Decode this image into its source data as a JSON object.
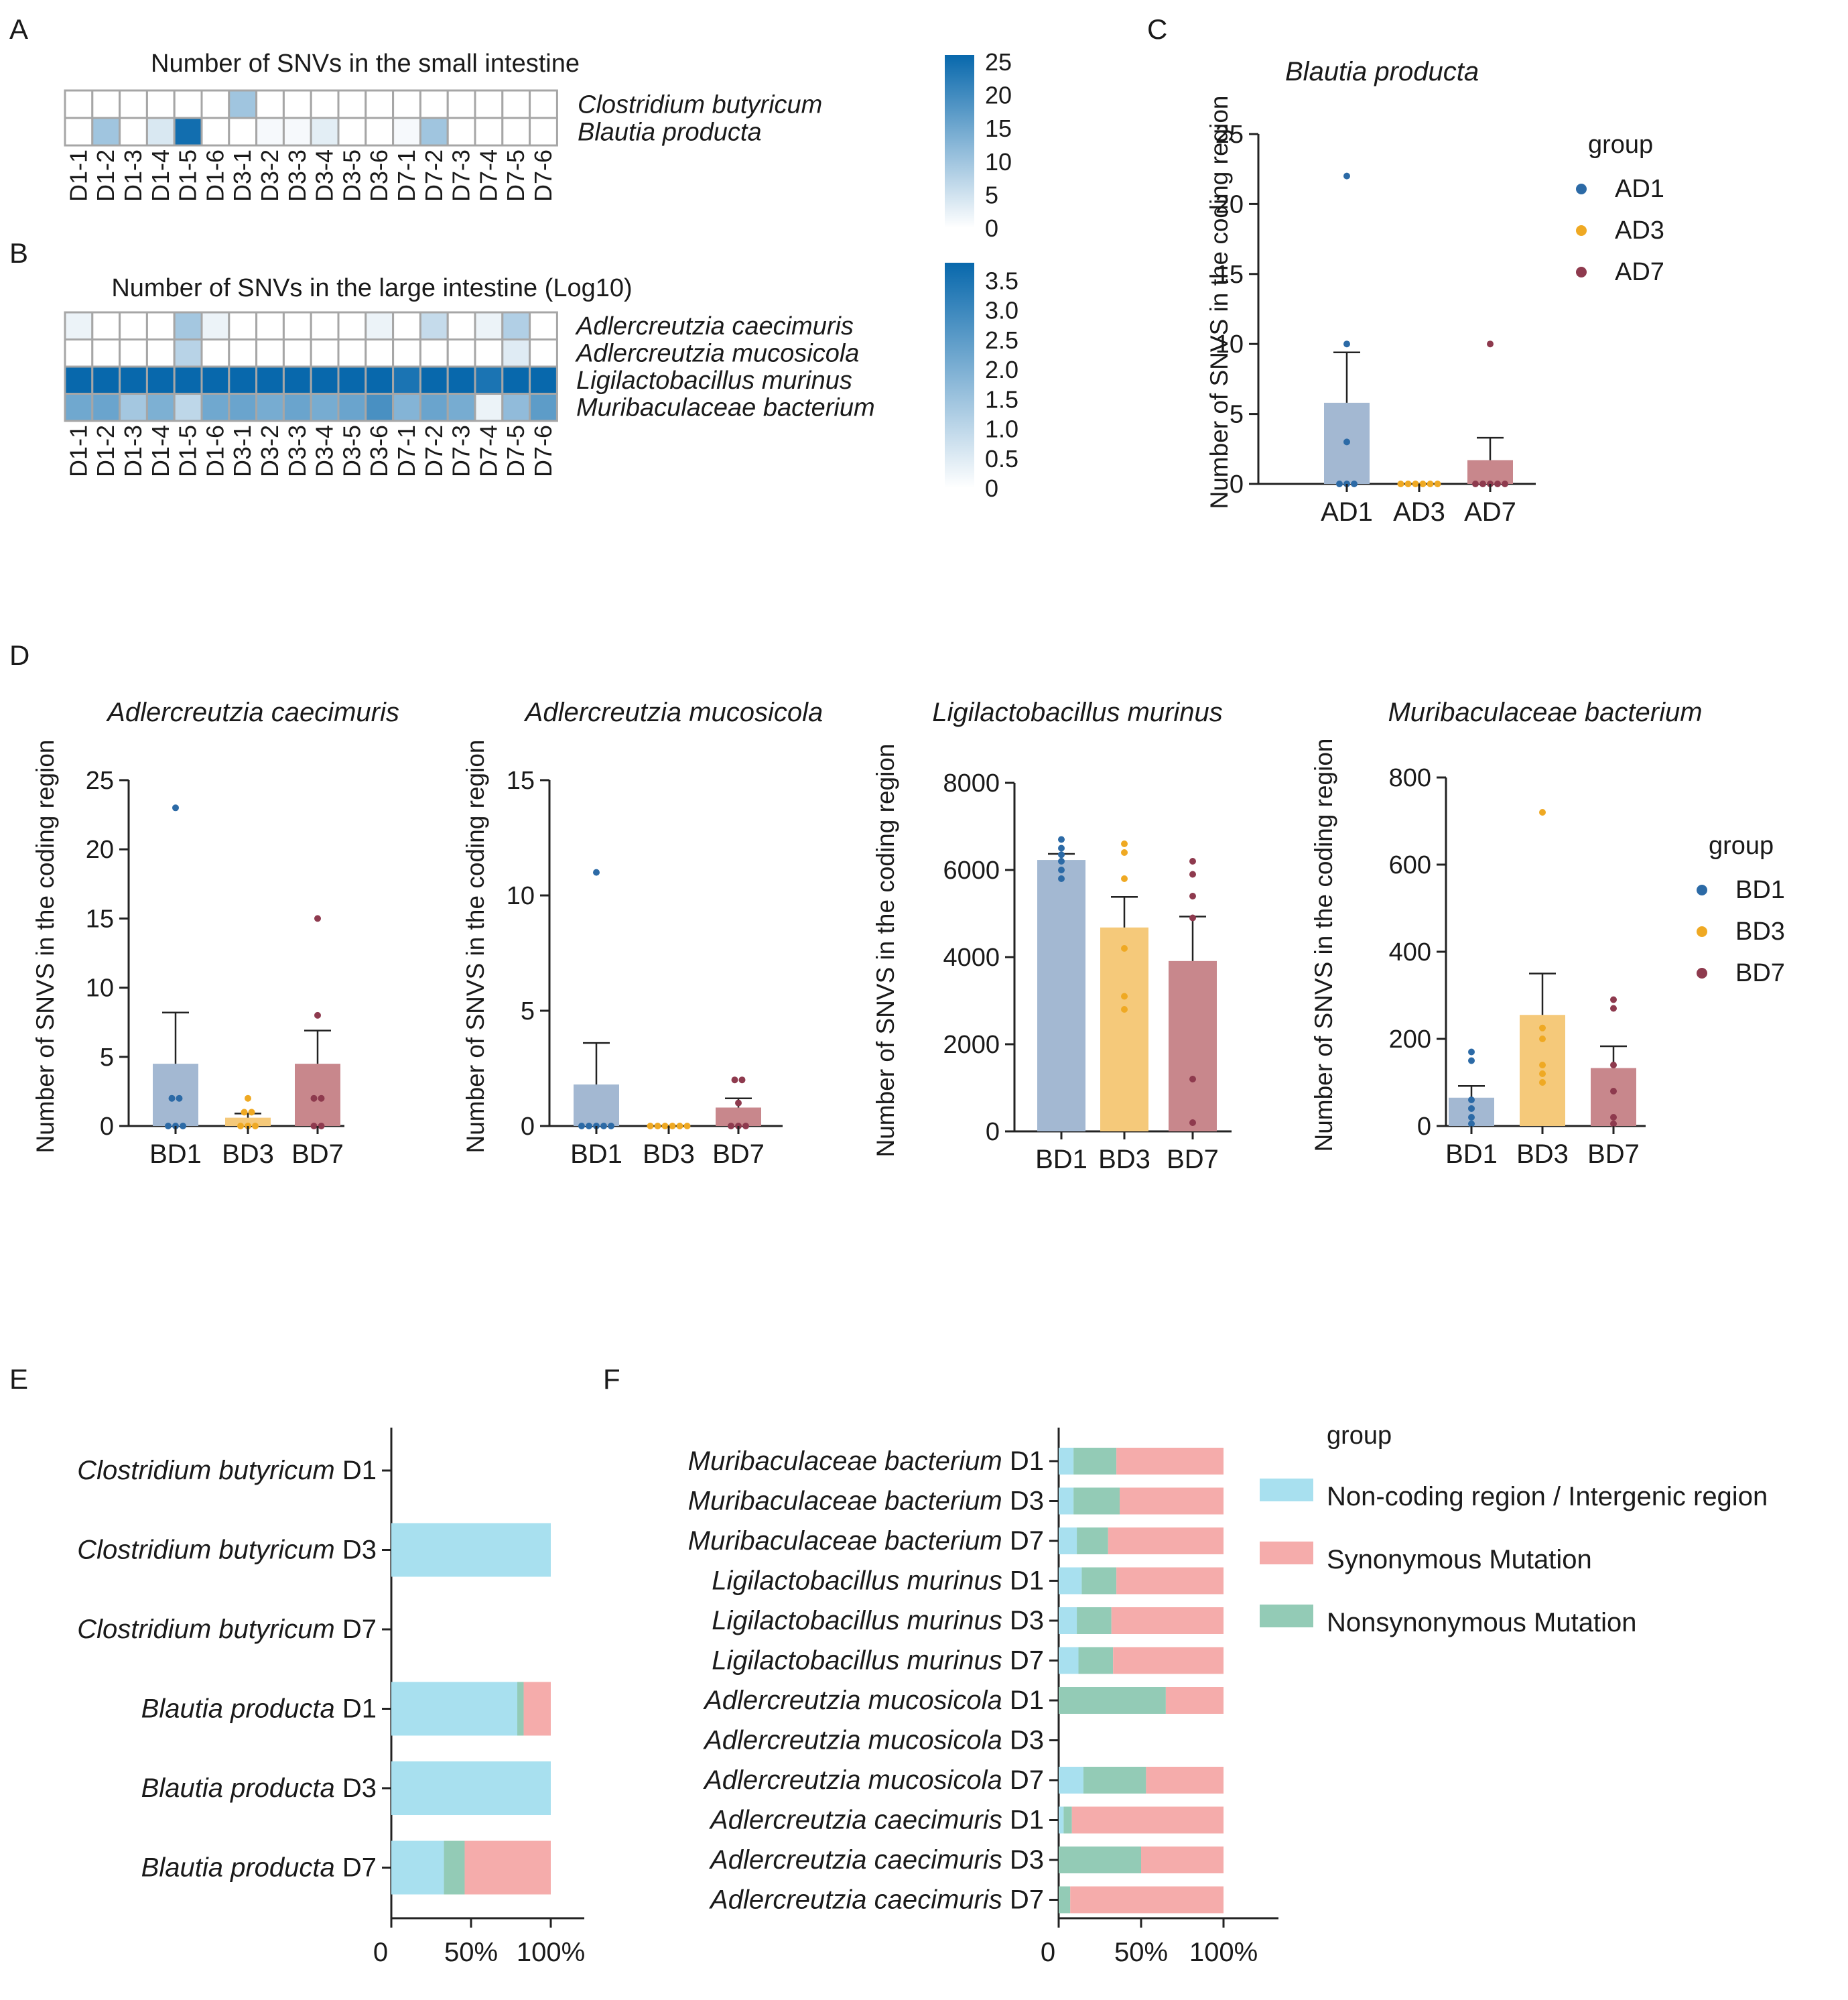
{
  "panel_letters": [
    "A",
    "B",
    "C",
    "D",
    "E",
    "F"
  ],
  "chart_data": [
    {
      "panel": "A",
      "type": "heatmap",
      "title": "Number of SNVs in the small intestine",
      "columns": [
        "D1-1",
        "D1-2",
        "D1-3",
        "D1-4",
        "D1-5",
        "D1-6",
        "D3-1",
        "D3-2",
        "D3-3",
        "D3-4",
        "D3-5",
        "D3-6",
        "D7-1",
        "D7-2",
        "D7-3",
        "D7-4",
        "D7-5",
        "D7-6"
      ],
      "rows": [
        "Clostridium butyricum",
        "Blautia producta"
      ],
      "values": [
        [
          0,
          0,
          0,
          0,
          0,
          0,
          10,
          0,
          0,
          0,
          0,
          0,
          0,
          0,
          0,
          0,
          0,
          0
        ],
        [
          0,
          10,
          0,
          4,
          25,
          0,
          0,
          1,
          1,
          3,
          0,
          0,
          1,
          10,
          0,
          0,
          0,
          0
        ]
      ],
      "color_scale": {
        "min": 0,
        "max": 26,
        "low_color": "#ffffff",
        "high_color": "#0868ac",
        "ticks": [
          "25",
          "20",
          "15",
          "10",
          "5",
          "0"
        ],
        "tick_values": [
          25,
          20,
          15,
          10,
          5,
          0
        ]
      }
    },
    {
      "panel": "B",
      "type": "heatmap",
      "title": "Number of SNVs in the large intestine (Log10)",
      "columns": [
        "D1-1",
        "D1-2",
        "D1-3",
        "D1-4",
        "D1-5",
        "D1-6",
        "D3-1",
        "D3-2",
        "D3-3",
        "D3-4",
        "D3-5",
        "D3-6",
        "D7-1",
        "D7-2",
        "D7-3",
        "D7-4",
        "D7-5",
        "D7-6"
      ],
      "rows": [
        "Adlercreutzia caecimuris",
        "Adlercreutzia mucosicola",
        "Ligilactobacillus murinus",
        "Muribaculaceae bacterium"
      ],
      "values": [
        [
          0.3,
          0,
          0,
          0,
          1.4,
          0.3,
          0,
          0,
          0,
          0,
          0,
          0.3,
          0,
          0.9,
          0,
          0.3,
          1.2,
          0
        ],
        [
          0,
          0,
          0,
          0,
          1.1,
          0,
          0,
          0,
          0,
          0,
          0,
          0,
          0,
          0,
          0,
          0,
          0.5,
          0
        ],
        [
          3.8,
          3.8,
          3.8,
          3.8,
          3.8,
          3.8,
          3.8,
          3.8,
          3.8,
          3.8,
          3.8,
          3.8,
          3.5,
          3.8,
          3.8,
          3.5,
          3.8,
          3.8
        ],
        [
          2.2,
          2.3,
          1.4,
          2.0,
          1.0,
          2.2,
          2.3,
          2.1,
          2.3,
          2.1,
          2.3,
          2.8,
          1.9,
          2.3,
          2.1,
          0.3,
          1.7,
          2.5
        ]
      ],
      "color_scale": {
        "min": 0,
        "max": 3.8,
        "low_color": "#ffffff",
        "high_color": "#0868ac",
        "ticks": [
          "3.5",
          "3.0",
          "2.5",
          "2.0",
          "1.5",
          "1.0",
          "0.5",
          "0"
        ],
        "tick_values": [
          3.5,
          3.0,
          2.5,
          2.0,
          1.5,
          1.0,
          0.5,
          0
        ]
      }
    },
    {
      "panel": "C",
      "type": "bar",
      "title": "Blautia producta",
      "ylabel": "Number of SNVS in the coding region",
      "categories": [
        "AD1",
        "AD3",
        "AD7"
      ],
      "means": [
        5.8,
        0,
        1.7
      ],
      "errors": [
        3.6,
        0,
        1.6
      ],
      "points": [
        [
          22,
          10,
          3,
          0,
          0,
          0
        ],
        [
          0,
          0,
          0,
          0,
          0,
          0
        ],
        [
          10,
          0,
          0,
          0,
          0,
          0
        ]
      ],
      "ylim": [
        0,
        25
      ],
      "yticks": [
        "0",
        "5",
        "10",
        "15",
        "20",
        "25"
      ],
      "ytick_values": [
        0,
        5,
        10,
        15,
        20,
        25
      ],
      "legend_title": "group",
      "legend": [
        "AD1",
        "AD3",
        "AD7"
      ]
    },
    {
      "panel": "D",
      "type": "bar",
      "title": "Adlercreutzia caecimuris",
      "ylabel": "Number of SNVS in the coding region",
      "categories": [
        "BD1",
        "BD3",
        "BD7"
      ],
      "means": [
        4.5,
        0.6,
        4.5
      ],
      "errors": [
        3.7,
        0.3,
        2.4
      ],
      "points": [
        [
          23,
          2,
          2,
          0,
          0,
          0
        ],
        [
          2,
          1,
          1,
          0,
          0,
          0
        ],
        [
          15,
          8,
          2,
          2,
          0,
          0
        ]
      ],
      "ylim": [
        0,
        25
      ],
      "yticks": [
        "0",
        "5",
        "10",
        "15",
        "20",
        "25"
      ],
      "ytick_values": [
        0,
        5,
        10,
        15,
        20,
        25
      ]
    },
    {
      "panel": "D",
      "type": "bar",
      "title": "Adlercreutzia mucosicola",
      "ylabel": "Number of SNVS in the coding region",
      "categories": [
        "BD1",
        "BD3",
        "BD7"
      ],
      "means": [
        1.8,
        0,
        0.8
      ],
      "errors": [
        1.8,
        0,
        0.4
      ],
      "points": [
        [
          11,
          0,
          0,
          0,
          0,
          0
        ],
        [
          0,
          0,
          0,
          0,
          0,
          0
        ],
        [
          2,
          2,
          1,
          0,
          0,
          0
        ]
      ],
      "ylim": [
        0,
        15
      ],
      "yticks": [
        "0",
        "5",
        "10",
        "15"
      ],
      "ytick_values": [
        0,
        5,
        10,
        15
      ]
    },
    {
      "panel": "D",
      "type": "bar",
      "title": "Ligilactobacillus murinus",
      "ylabel": "Number of SNVS in the coding region",
      "categories": [
        "BD1",
        "BD3",
        "BD7"
      ],
      "means": [
        6230,
        4680,
        3910
      ],
      "errors": [
        140,
        700,
        1020
      ],
      "points": [
        [
          6700,
          6500,
          6350,
          6200,
          6000,
          5800
        ],
        [
          6600,
          6400,
          5800,
          4200,
          3100,
          2800
        ],
        [
          6200,
          5900,
          5400,
          4900,
          1200,
          200
        ]
      ],
      "ylim": [
        0,
        8000
      ],
      "yticks": [
        "0",
        "2000",
        "4000",
        "6000",
        "8000"
      ],
      "ytick_values": [
        0,
        2000,
        4000,
        6000,
        8000
      ]
    },
    {
      "panel": "D",
      "type": "bar",
      "title": "Muribaculaceae bacterium",
      "ylabel": "Number of SNVS in the coding region",
      "categories": [
        "BD1",
        "BD3",
        "BD7"
      ],
      "means": [
        65,
        255,
        133
      ],
      "errors": [
        27,
        95,
        50
      ],
      "points": [
        [
          170,
          150,
          60,
          40,
          20,
          5
        ],
        [
          720,
          225,
          200,
          140,
          120,
          100
        ],
        [
          290,
          270,
          140,
          80,
          20,
          5
        ]
      ],
      "ylim": [
        0,
        800
      ],
      "yticks": [
        "0",
        "200",
        "400",
        "600",
        "800"
      ],
      "ytick_values": [
        0,
        200,
        400,
        600,
        800
      ],
      "legend_title": "group",
      "legend": [
        "BD1",
        "BD3",
        "BD7"
      ]
    },
    {
      "panel": "E",
      "type": "bar",
      "orientation": "horizontal-stacked",
      "categories": [
        {
          "species": "Clostridium butyricum",
          "day": "D1"
        },
        {
          "species": "Clostridium butyricum",
          "day": "D3"
        },
        {
          "species": "Clostridium butyricum",
          "day": "D7"
        },
        {
          "species": "Blautia producta",
          "day": "D1"
        },
        {
          "species": "Blautia producta",
          "day": "D3"
        },
        {
          "species": "Blautia producta",
          "day": "D7"
        }
      ],
      "series": [
        {
          "name": "Non-coding region / Intergenic region",
          "values": [
            0,
            100,
            0,
            79,
            100,
            33
          ]
        },
        {
          "name": "Nonsynonymous Mutation",
          "values": [
            0,
            0,
            0,
            4,
            0,
            13
          ]
        },
        {
          "name": "Synonymous Mutation",
          "values": [
            0,
            0,
            0,
            17,
            0,
            54
          ]
        }
      ],
      "xticks": [
        "0",
        "50%",
        "100%"
      ],
      "xtick_values": [
        0,
        50,
        100
      ]
    },
    {
      "panel": "F",
      "type": "bar",
      "orientation": "horizontal-stacked",
      "categories": [
        {
          "species": "Muribaculaceae bacterium",
          "day": "D1"
        },
        {
          "species": "Muribaculaceae bacterium",
          "day": "D3"
        },
        {
          "species": "Muribaculaceae bacterium",
          "day": "D7"
        },
        {
          "species": "Ligilactobacillus murinus",
          "day": "D1"
        },
        {
          "species": "Ligilactobacillus murinus",
          "day": "D3"
        },
        {
          "species": "Ligilactobacillus murinus",
          "day": "D7"
        },
        {
          "species": "Adlercreutzia mucosicola",
          "day": "D1"
        },
        {
          "species": "Adlercreutzia mucosicola",
          "day": "D3"
        },
        {
          "species": "Adlercreutzia mucosicola",
          "day": "D7"
        },
        {
          "species": "Adlercreutzia caecimuris",
          "day": "D1"
        },
        {
          "species": "Adlercreutzia caecimuris",
          "day": "D3"
        },
        {
          "species": "Adlercreutzia caecimuris",
          "day": "D7"
        }
      ],
      "series": [
        {
          "name": "Non-coding region / Intergenic region",
          "values": [
            9,
            9,
            11,
            14,
            11,
            12,
            0,
            0,
            15,
            3,
            0,
            0
          ]
        },
        {
          "name": "Nonsynonymous Mutation",
          "values": [
            26,
            28,
            19,
            21,
            21,
            21,
            65,
            0,
            38,
            5,
            50,
            7
          ]
        },
        {
          "name": "Synonymous Mutation",
          "values": [
            65,
            63,
            70,
            65,
            68,
            67,
            35,
            0,
            47,
            92,
            50,
            93
          ]
        }
      ],
      "xticks": [
        "0",
        "50%",
        "100%"
      ],
      "xtick_values": [
        0,
        50,
        100
      ],
      "legend_title": "group",
      "legend": [
        "Non-coding region / Intergenic region",
        "Synonymous Mutation",
        "Nonsynonymous Mutation"
      ]
    }
  ],
  "colors": {
    "AD1": "#2c6aa6",
    "AD3": "#efa923",
    "AD7": "#8e3a4e",
    "bar_fill_1": "#a3b8d2",
    "bar_fill_3": "#f5c97a",
    "bar_fill_7": "#c8878c",
    "noncoding": "#a8e0ef",
    "synonymous": "#f5acab",
    "nonsynonymous": "#93cbb6",
    "heat_high": "#0868ac",
    "grid": "#a6a6a6"
  }
}
